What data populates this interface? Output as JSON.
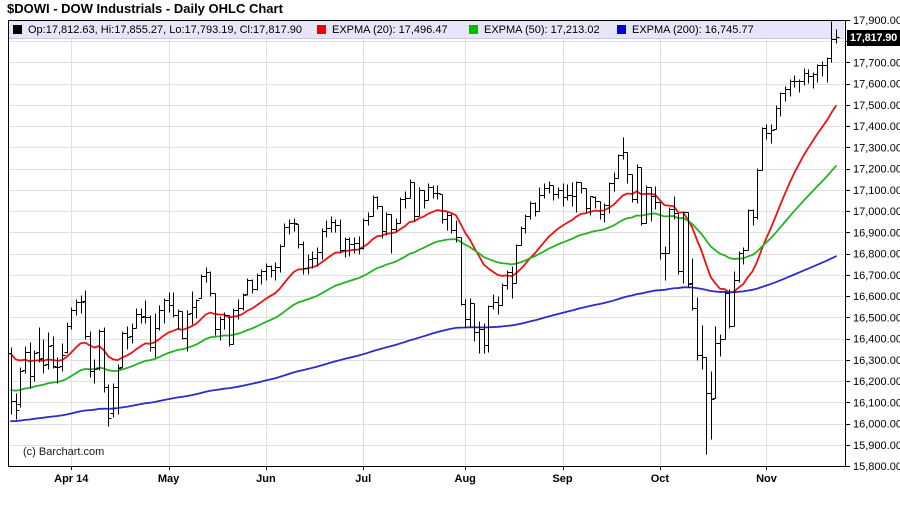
{
  "header": {
    "title": "$DOWI - DOW Industrials - Daily OHLC Chart"
  },
  "legend": {
    "bg_color": "#e6e6f8",
    "items": [
      {
        "swatch_color": "#000000",
        "label": "Op:17,812.63, Hi:17,855.27, Lo:17,793.19, Cl:17,817.90"
      },
      {
        "swatch_color": "#ee0000",
        "label": "EXPMA (20): 17,496.47"
      },
      {
        "swatch_color": "#00bb00",
        "label": "EXPMA (50): 17,213.02"
      },
      {
        "swatch_color": "#0000dd",
        "label": "EXPMA (200): 16,745.77"
      }
    ]
  },
  "price_tag": {
    "value": "17,817.90",
    "bg": "#000000",
    "fg": "#ffffff",
    "price": 17817.9
  },
  "watermark": {
    "text": "(c) Barchart.com"
  },
  "chart_data": {
    "type": "ohlc",
    "title": "$DOWI - DOW Industrials - Daily OHLC Chart",
    "ylim": [
      15800,
      17900
    ],
    "y_tick_step": 100,
    "y_tick_values": [
      17900,
      17800,
      17700,
      17600,
      17500,
      17400,
      17300,
      17200,
      17100,
      17000,
      16900,
      16800,
      16700,
      16600,
      16500,
      16400,
      16300,
      16200,
      16100,
      16000,
      15900,
      15800
    ],
    "grid": true,
    "grid_color": "#e0e0e0",
    "frame_color": "#000000",
    "bar_color": "#000000",
    "x_ticks": [
      {
        "label": "Apr 14",
        "index": 13
      },
      {
        "label": "May",
        "index": 34
      },
      {
        "label": "Jun",
        "index": 55
      },
      {
        "label": "Jul",
        "index": 76
      },
      {
        "label": "Aug",
        "index": 98
      },
      {
        "label": "Sep",
        "index": 119
      },
      {
        "label": "Oct",
        "index": 140
      },
      {
        "label": "Nov",
        "index": 163
      }
    ],
    "overlays": [
      {
        "name": "EXPMA (20)",
        "period": 20,
        "seed": 16350,
        "color": "#ee1111",
        "end_value": 17496.47
      },
      {
        "name": "EXPMA (50)",
        "period": 50,
        "seed": 16160,
        "color": "#22b422",
        "end_value": 17213.02
      },
      {
        "name": "EXPMA (200)",
        "period": 200,
        "seed": 16010,
        "color": "#2c2cc8",
        "end_value": 16745.77
      }
    ],
    "ohlc": [
      [
        16330,
        16360,
        16046,
        16108
      ],
      [
        16108,
        16145,
        16023,
        16066
      ],
      [
        16090,
        16266,
        16080,
        16247
      ],
      [
        16250,
        16364,
        16240,
        16336
      ],
      [
        16335,
        16382,
        16167,
        16222
      ],
      [
        16222,
        16348,
        16200,
        16331
      ],
      [
        16335,
        16456,
        16290,
        16303
      ],
      [
        16310,
        16398,
        16240,
        16276
      ],
      [
        16280,
        16432,
        16255,
        16367
      ],
      [
        16370,
        16413,
        16260,
        16269
      ],
      [
        16265,
        16312,
        16190,
        16264
      ],
      [
        16270,
        16381,
        16247,
        16323
      ],
      [
        16335,
        16476,
        16333,
        16458
      ],
      [
        16460,
        16547,
        16445,
        16533
      ],
      [
        16535,
        16588,
        16510,
        16573
      ],
      [
        16573,
        16604,
        16520,
        16572
      ],
      [
        16575,
        16631,
        16397,
        16413
      ],
      [
        16410,
        16438,
        16220,
        16246
      ],
      [
        16245,
        16306,
        16190,
        16256
      ],
      [
        16260,
        16444,
        16250,
        16437
      ],
      [
        16437,
        16456,
        16150,
        16170
      ],
      [
        16170,
        16186,
        15990,
        16027
      ],
      [
        16050,
        16190,
        16030,
        16173
      ],
      [
        16173,
        16280,
        16045,
        16263
      ],
      [
        16265,
        16438,
        16265,
        16425
      ],
      [
        16425,
        16460,
        16350,
        16409
      ],
      [
        16410,
        16475,
        16380,
        16449
      ],
      [
        16450,
        16546,
        16450,
        16514
      ],
      [
        16514,
        16545,
        16475,
        16502
      ],
      [
        16505,
        16582,
        16474,
        16502
      ],
      [
        16500,
        16510,
        16340,
        16361
      ],
      [
        16361,
        16521,
        16313,
        16449
      ],
      [
        16450,
        16559,
        16440,
        16535
      ],
      [
        16535,
        16589,
        16475,
        16581
      ],
      [
        16582,
        16621,
        16524,
        16559
      ],
      [
        16560,
        16620,
        16500,
        16513
      ],
      [
        16510,
        16537,
        16443,
        16531
      ],
      [
        16530,
        16530,
        16396,
        16401
      ],
      [
        16401,
        16535,
        16342,
        16518
      ],
      [
        16519,
        16622,
        16469,
        16551
      ],
      [
        16550,
        16588,
        16496,
        16583
      ],
      [
        16590,
        16705,
        16589,
        16695
      ],
      [
        16695,
        16736,
        16668,
        16715
      ],
      [
        16715,
        16717,
        16600,
        16614
      ],
      [
        16613,
        16613,
        16418,
        16447
      ],
      [
        16447,
        16506,
        16394,
        16491
      ],
      [
        16490,
        16526,
        16446,
        16511
      ],
      [
        16511,
        16511,
        16364,
        16374
      ],
      [
        16375,
        16544,
        16373,
        16533
      ],
      [
        16533,
        16584,
        16493,
        16543
      ],
      [
        16543,
        16616,
        16533,
        16606
      ],
      [
        16610,
        16687,
        16604,
        16676
      ],
      [
        16675,
        16680,
        16614,
        16634
      ],
      [
        16635,
        16711,
        16630,
        16699
      ],
      [
        16699,
        16727,
        16659,
        16717
      ],
      [
        16717,
        16757,
        16674,
        16744
      ],
      [
        16743,
        16748,
        16689,
        16722
      ],
      [
        16722,
        16760,
        16676,
        16737
      ],
      [
        16738,
        16844,
        16715,
        16836
      ],
      [
        16837,
        16943,
        16837,
        16924
      ],
      [
        16924,
        16963,
        16891,
        16943
      ],
      [
        16943,
        16970,
        16908,
        16945
      ],
      [
        16940,
        16940,
        16827,
        16844
      ],
      [
        16844,
        16858,
        16703,
        16734
      ],
      [
        16734,
        16798,
        16706,
        16776
      ],
      [
        16776,
        16813,
        16734,
        16781
      ],
      [
        16781,
        16829,
        16740,
        16808
      ],
      [
        16808,
        16921,
        16773,
        16906
      ],
      [
        16907,
        16960,
        16880,
        16921
      ],
      [
        16921,
        16978,
        16903,
        16947
      ],
      [
        16947,
        16963,
        16902,
        16937
      ],
      [
        16937,
        16963,
        16802,
        16818
      ],
      [
        16818,
        16880,
        16782,
        16867
      ],
      [
        16867,
        16878,
        16791,
        16846
      ],
      [
        16846,
        16877,
        16804,
        16852
      ],
      [
        16852,
        16882,
        16800,
        16827
      ],
      [
        16828,
        16969,
        16821,
        16956
      ],
      [
        16956,
        16998,
        16935,
        16976
      ],
      [
        16976,
        17074,
        16976,
        17068
      ],
      [
        17068,
        17070,
        17012,
        17024
      ],
      [
        17024,
        17024,
        16875,
        16906
      ],
      [
        16906,
        16995,
        16890,
        16985
      ],
      [
        16985,
        16985,
        16805,
        16915
      ],
      [
        16915,
        16970,
        16902,
        16944
      ],
      [
        16944,
        17065,
        16944,
        17055
      ],
      [
        17055,
        17093,
        17014,
        17061
      ],
      [
        17062,
        17151,
        17062,
        17138
      ],
      [
        17137,
        17137,
        16955,
        16977
      ],
      [
        16978,
        17114,
        16978,
        17100
      ],
      [
        17100,
        17100,
        17017,
        17052
      ],
      [
        17052,
        17132,
        17052,
        17114
      ],
      [
        17114,
        17121,
        17063,
        17087
      ],
      [
        17087,
        17124,
        17057,
        17084
      ],
      [
        17083,
        17083,
        16944,
        16961
      ],
      [
        16961,
        16997,
        16912,
        16983
      ],
      [
        16983,
        16991,
        16898,
        16912
      ],
      [
        16912,
        16958,
        16855,
        16880
      ],
      [
        16878,
        16878,
        16556,
        16563
      ],
      [
        16563,
        16588,
        16454,
        16493
      ],
      [
        16494,
        16591,
        16456,
        16569
      ],
      [
        16569,
        16569,
        16388,
        16429
      ],
      [
        16429,
        16485,
        16333,
        16443
      ],
      [
        16443,
        16472,
        16334,
        16368
      ],
      [
        16368,
        16556,
        16336,
        16554
      ],
      [
        16554,
        16608,
        16537,
        16570
      ],
      [
        16570,
        16600,
        16518,
        16560
      ],
      [
        16560,
        16662,
        16558,
        16652
      ],
      [
        16652,
        16721,
        16634,
        16714
      ],
      [
        16714,
        16741,
        16593,
        16663
      ],
      [
        16664,
        16846,
        16664,
        16839
      ],
      [
        16840,
        16929,
        16840,
        16919
      ],
      [
        16919,
        16988,
        16895,
        16979
      ],
      [
        16979,
        17046,
        16965,
        17039
      ],
      [
        17039,
        17041,
        16978,
        17001
      ],
      [
        17001,
        17116,
        17001,
        17077
      ],
      [
        17077,
        17132,
        17063,
        17107
      ],
      [
        17107,
        17144,
        17084,
        17122
      ],
      [
        17121,
        17121,
        17051,
        17079
      ],
      [
        17080,
        17116,
        17060,
        17098
      ],
      [
        17098,
        17131,
        17026,
        17067
      ],
      [
        17067,
        17128,
        17053,
        17078
      ],
      [
        17078,
        17135,
        17024,
        17070
      ],
      [
        17070,
        17140,
        16998,
        17137
      ],
      [
        17137,
        17137,
        17084,
        17111
      ],
      [
        17111,
        17111,
        16994,
        17014
      ],
      [
        17014,
        17073,
        16983,
        17069
      ],
      [
        17068,
        17069,
        17013,
        17049
      ],
      [
        17049,
        17049,
        16963,
        16987
      ],
      [
        16987,
        17040,
        16948,
        17031
      ],
      [
        17031,
        17138,
        16990,
        17132
      ],
      [
        17132,
        17184,
        17095,
        17157
      ],
      [
        17157,
        17271,
        17157,
        17266
      ],
      [
        17266,
        17350,
        17245,
        17280
      ],
      [
        17279,
        17279,
        17133,
        17173
      ],
      [
        17173,
        17173,
        17043,
        17056
      ],
      [
        17056,
        17221,
        17038,
        17210
      ],
      [
        17210,
        17210,
        16934,
        16946
      ],
      [
        16946,
        17121,
        16946,
        17113
      ],
      [
        17112,
        17112,
        16953,
        17071
      ],
      [
        17071,
        17119,
        17009,
        17043
      ],
      [
        17042,
        17042,
        16774,
        16805
      ],
      [
        16805,
        16837,
        16675,
        16801
      ],
      [
        16802,
        17020,
        16802,
        17010
      ],
      [
        17010,
        17069,
        16962,
        16991
      ],
      [
        16991,
        16991,
        16705,
        16719
      ],
      [
        16719,
        17003,
        16663,
        16994
      ],
      [
        16994,
        16994,
        16642,
        16659
      ],
      [
        16660,
        16780,
        16533,
        16544
      ],
      [
        16544,
        16596,
        16301,
        16321
      ],
      [
        16321,
        16463,
        16256,
        16315
      ],
      [
        16315,
        16315,
        15855,
        16142
      ],
      [
        16142,
        16246,
        15926,
        16117
      ],
      [
        16118,
        16461,
        16118,
        16380
      ],
      [
        16380,
        16421,
        16319,
        16400
      ],
      [
        16400,
        16622,
        16400,
        16615
      ],
      [
        16615,
        16635,
        16450,
        16461
      ],
      [
        16461,
        16717,
        16461,
        16678
      ],
      [
        16678,
        16812,
        16665,
        16805
      ],
      [
        16805,
        16829,
        16749,
        16818
      ],
      [
        16818,
        17012,
        16818,
        17006
      ],
      [
        17006,
        17011,
        16935,
        16974
      ],
      [
        16974,
        17205,
        16965,
        17195
      ],
      [
        17196,
        17395,
        17196,
        17390
      ],
      [
        17390,
        17411,
        17342,
        17366
      ],
      [
        17366,
        17409,
        17321,
        17384
      ],
      [
        17385,
        17499,
        17385,
        17484
      ],
      [
        17484,
        17560,
        17446,
        17554
      ],
      [
        17554,
        17590,
        17520,
        17574
      ],
      [
        17574,
        17621,
        17541,
        17614
      ],
      [
        17614,
        17640,
        17585,
        17614
      ],
      [
        17613,
        17621,
        17562,
        17612
      ],
      [
        17612,
        17672,
        17593,
        17652
      ],
      [
        17652,
        17668,
        17603,
        17635
      ],
      [
        17635,
        17656,
        17579,
        17647
      ],
      [
        17647,
        17694,
        17609,
        17688
      ],
      [
        17688,
        17705,
        17634,
        17686
      ],
      [
        17686,
        17728,
        17610,
        17719
      ],
      [
        17721,
        17894,
        17700,
        17810
      ],
      [
        17812.63,
        17855.27,
        17793.19,
        17817.9
      ]
    ],
    "last_price": 17817.9
  }
}
